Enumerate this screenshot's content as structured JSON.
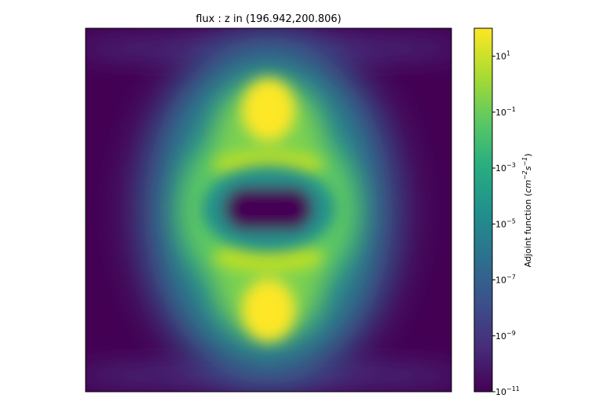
{
  "chart_data": {
    "type": "heatmap",
    "title": "flux : z in (196.942,200.806)",
    "xlabel": "",
    "ylabel": "",
    "colormap": "viridis",
    "colorbar": {
      "label": "Adjoint function (cm⁻²s⁻¹)",
      "label_base": "Adjoint function (",
      "label_unit_cm": "cm",
      "label_exp_cm": "−2",
      "label_unit_s": "s",
      "label_exp_s": "−1",
      "label_close": ")",
      "scale": "log",
      "range": [
        1e-11,
        100
      ],
      "ticks": [
        {
          "base": "10",
          "exp": "1",
          "value": 10
        },
        {
          "base": "10",
          "exp": "−1",
          "value": 0.1
        },
        {
          "base": "10",
          "exp": "−3",
          "value": 0.001
        },
        {
          "base": "10",
          "exp": "−5",
          "value": 1e-05
        },
        {
          "base": "10",
          "exp": "−7",
          "value": 1e-07
        },
        {
          "base": "10",
          "exp": "−9",
          "value": 1e-09
        },
        {
          "base": "10",
          "exp": "−11",
          "value": 1e-11
        }
      ]
    },
    "grid": false,
    "ticks_shown": false
  }
}
